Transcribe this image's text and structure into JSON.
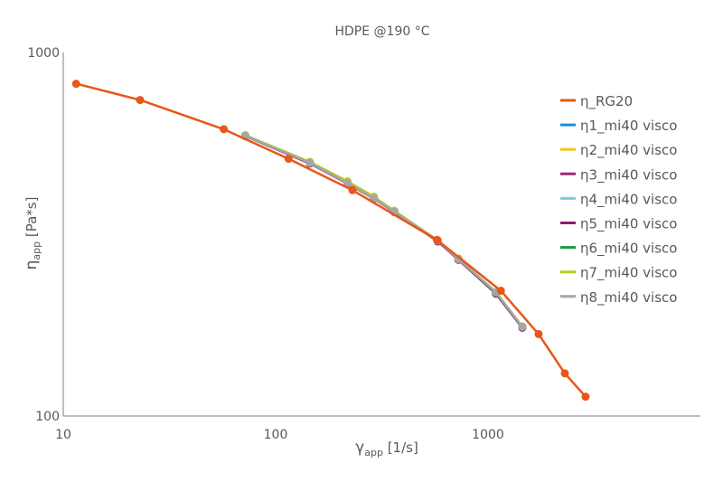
{
  "chart_data": {
    "type": "line",
    "title": "HDPE @190 °C",
    "x_scale": "log",
    "y_scale": "log",
    "xlim": [
      10,
      10000
    ],
    "ylim": [
      100,
      1000
    ],
    "x_ticks": [
      "10",
      "100",
      "1000"
    ],
    "y_ticks": [
      "100",
      "1000"
    ],
    "xlabel": {
      "symbol": "γ",
      "sub": "app",
      "unit": " [1/s]"
    },
    "ylabel": {
      "symbol": "η",
      "sub": "app",
      "unit": " [Pa*s]"
    },
    "legend_position": "right",
    "grid": false,
    "series": [
      {
        "name": "η_RG20",
        "color": "#e8561a",
        "x": [
          11.5,
          23,
          57,
          115,
          230,
          575,
          1150,
          1730,
          2300,
          2880
        ],
        "y": [
          820,
          740,
          615,
          510,
          418,
          305,
          221,
          168,
          131,
          113
        ]
      },
      {
        "name": "η1_mi40 visco",
        "color": "#1e8fd5",
        "x": [
          72,
          145,
          218,
          290,
          362,
          580,
          725,
          1090,
          1450
        ],
        "y": [
          590,
          496,
          437,
          397,
          365,
          303,
          270,
          218,
          176
        ]
      },
      {
        "name": "η2_mi40 visco",
        "color": "#f5c518",
        "x": [
          72,
          145,
          218,
          290,
          362,
          580,
          725,
          1090,
          1450
        ],
        "y": [
          590,
          497,
          438,
          398,
          366,
          304,
          270,
          218,
          176
        ]
      },
      {
        "name": "η3_mi40 visco",
        "color": "#a0297a",
        "x": [
          72,
          145,
          218,
          290,
          362,
          580,
          725,
          1090,
          1450
        ],
        "y": [
          589,
          496,
          436,
          397,
          365,
          303,
          269,
          217,
          175
        ]
      },
      {
        "name": "η4_mi40 visco",
        "color": "#78c8e6",
        "x": [
          72,
          145,
          218,
          290,
          362,
          580,
          725,
          1090,
          1450
        ],
        "y": [
          590,
          496,
          437,
          397,
          365,
          303,
          270,
          218,
          176
        ]
      },
      {
        "name": "η5_mi40 visco",
        "color": "#8b1a6e",
        "x": [
          72,
          145,
          218,
          290,
          362,
          580,
          725,
          1090,
          1450
        ],
        "y": [
          589,
          495,
          436,
          396,
          364,
          302,
          269,
          217,
          175
        ]
      },
      {
        "name": "η6_mi40 visco",
        "color": "#1a9648",
        "x": [
          72,
          145,
          218,
          290,
          362,
          580,
          725,
          1090,
          1450
        ],
        "y": [
          590,
          497,
          438,
          398,
          366,
          304,
          270,
          218,
          176
        ]
      },
      {
        "name": "η7_mi40 visco",
        "color": "#b9cc1e",
        "x": [
          72,
          145,
          218,
          290,
          362,
          580,
          725,
          1090,
          1450
        ],
        "y": [
          592,
          500,
          442,
          401,
          367,
          304,
          271,
          219,
          176
        ]
      },
      {
        "name": "η8_mi40 visco",
        "color": "#a6a6a6",
        "x": [
          72,
          145,
          218,
          290,
          362,
          580,
          725,
          1090,
          1450
        ],
        "y": [
          590,
          497,
          437,
          397,
          365,
          304,
          270,
          219,
          176
        ]
      }
    ]
  }
}
